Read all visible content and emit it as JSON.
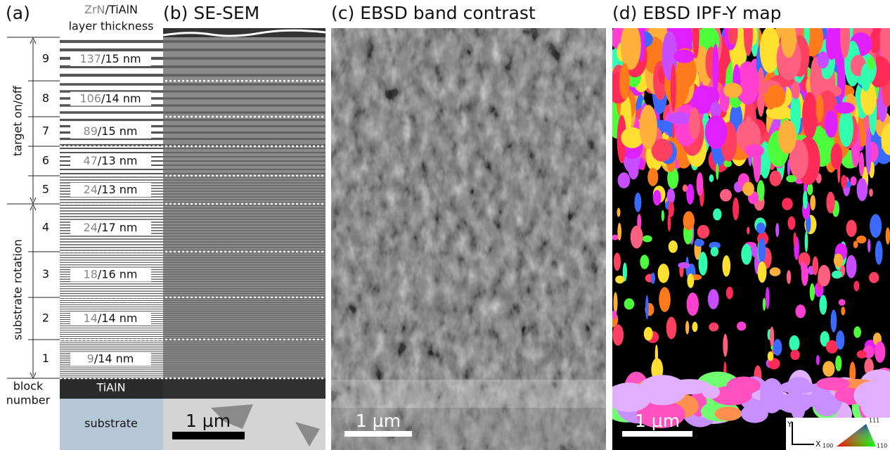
{
  "panel_a": {
    "label": "(a)",
    "header": {
      "zrn": "ZrN",
      "tialn": "/TiAlN",
      "line2": "layer thickness"
    },
    "blocks": [
      {
        "number": "9",
        "zrn": "137",
        "tialn": "/15 nm"
      },
      {
        "number": "8",
        "zrn": "106",
        "tialn": "/14 nm"
      },
      {
        "number": "7",
        "zrn": "89",
        "tialn": "/15 nm"
      },
      {
        "number": "6",
        "zrn": "47",
        "tialn": "/13 nm"
      },
      {
        "number": "5",
        "zrn": "24",
        "tialn": "/13 nm"
      },
      {
        "number": "4",
        "zrn": "24",
        "tialn": "/17 nm"
      },
      {
        "number": "3",
        "zrn": "18",
        "tialn": "/16 nm"
      },
      {
        "number": "2",
        "zrn": "14",
        "tialn": "/14 nm"
      },
      {
        "number": "1",
        "zrn": "9",
        "tialn": "/14 nm"
      }
    ],
    "groups": {
      "target": "target on/off",
      "rotation": "substrate rotation"
    },
    "block_number": [
      "block",
      "number"
    ],
    "tialn_layer": "TiAlN",
    "substrate": "substrate"
  },
  "panel_b": {
    "label": "(b) SE-SEM",
    "scale_bar": "1 µm"
  },
  "panel_c": {
    "label": "(c) EBSD band contrast",
    "scale_bar": "1 µm"
  },
  "panel_d": {
    "label": "(d) EBSD IPF-Y map",
    "scale_bar": "1 µm",
    "legend": {
      "y": "Y",
      "x": "X",
      "top": "111",
      "left": "100",
      "right": "110"
    }
  }
}
